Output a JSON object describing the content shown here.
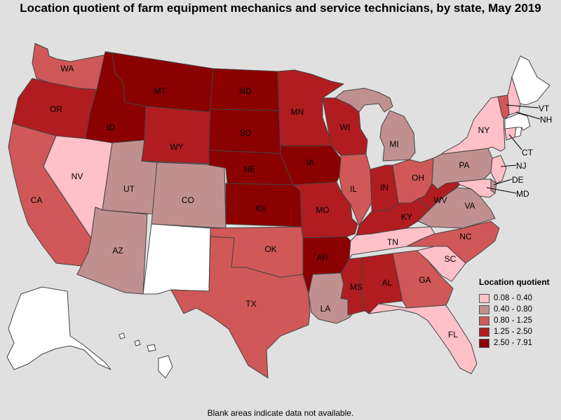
{
  "title": "Location quotient of farm equipment mechanics and service technicians, by state, May 2019",
  "footnote": "Blank areas indicate data not available.",
  "legend": {
    "title": "Location quotient",
    "items": [
      {
        "label": "0.08 - 0.40",
        "color": "#ffc0c8"
      },
      {
        "label": "0.40 - 0.80",
        "color": "#c09090"
      },
      {
        "label": "0.80 - 1.25",
        "color": "#d05858"
      },
      {
        "label": "1.25 - 2.50",
        "color": "#b01c20"
      },
      {
        "label": "2.50 - 7.91",
        "color": "#8b0000"
      }
    ]
  },
  "no_data_color": "#ffffff",
  "states": [
    {
      "abbr": "WA",
      "class": 2
    },
    {
      "abbr": "OR",
      "class": 3
    },
    {
      "abbr": "CA",
      "class": 2
    },
    {
      "abbr": "NV",
      "class": 0
    },
    {
      "abbr": "ID",
      "class": 4
    },
    {
      "abbr": "MT",
      "class": 4
    },
    {
      "abbr": "WY",
      "class": 3
    },
    {
      "abbr": "UT",
      "class": 1
    },
    {
      "abbr": "AZ",
      "class": 1
    },
    {
      "abbr": "CO",
      "class": 1
    },
    {
      "abbr": "NM",
      "class": null
    },
    {
      "abbr": "ND",
      "class": 4
    },
    {
      "abbr": "SD",
      "class": 4
    },
    {
      "abbr": "NE",
      "class": 4
    },
    {
      "abbr": "KS",
      "class": 4
    },
    {
      "abbr": "OK",
      "class": 2
    },
    {
      "abbr": "TX",
      "class": 2
    },
    {
      "abbr": "MN",
      "class": 3
    },
    {
      "abbr": "IA",
      "class": 4
    },
    {
      "abbr": "MO",
      "class": 3
    },
    {
      "abbr": "AR",
      "class": 4
    },
    {
      "abbr": "LA",
      "class": 1
    },
    {
      "abbr": "WI",
      "class": 3
    },
    {
      "abbr": "IL",
      "class": 2
    },
    {
      "abbr": "MI",
      "class": 1
    },
    {
      "abbr": "IN",
      "class": 3
    },
    {
      "abbr": "OH",
      "class": 2
    },
    {
      "abbr": "KY",
      "class": 3
    },
    {
      "abbr": "TN",
      "class": 0
    },
    {
      "abbr": "MS",
      "class": 3
    },
    {
      "abbr": "AL",
      "class": 3
    },
    {
      "abbr": "GA",
      "class": 2
    },
    {
      "abbr": "FL",
      "class": 0
    },
    {
      "abbr": "SC",
      "class": 0
    },
    {
      "abbr": "NC",
      "class": 2
    },
    {
      "abbr": "VA",
      "class": 1
    },
    {
      "abbr": "WV",
      "class": 3
    },
    {
      "abbr": "PA",
      "class": 1
    },
    {
      "abbr": "NY",
      "class": 0
    },
    {
      "abbr": "VT",
      "class": 2
    },
    {
      "abbr": "NH",
      "class": 0
    },
    {
      "abbr": "ME",
      "class": null
    },
    {
      "abbr": "MA",
      "class": null
    },
    {
      "abbr": "CT",
      "class": 0
    },
    {
      "abbr": "RI",
      "class": null
    },
    {
      "abbr": "NJ",
      "class": 0
    },
    {
      "abbr": "DE",
      "class": 1
    },
    {
      "abbr": "MD",
      "class": 0
    },
    {
      "abbr": "AK",
      "class": null
    },
    {
      "abbr": "HI",
      "class": null
    }
  ]
}
